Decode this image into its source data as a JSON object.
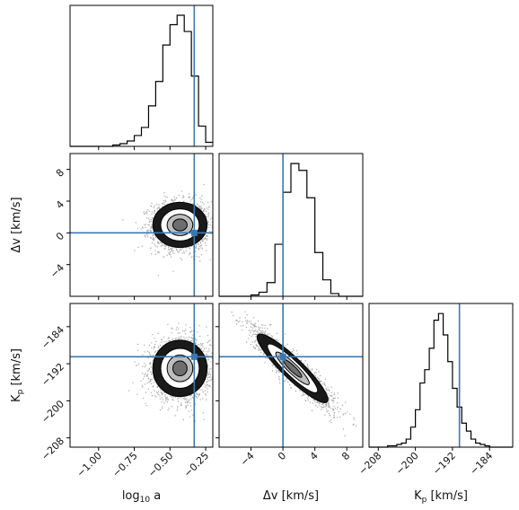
{
  "chart_data": {
    "type": "corner",
    "truth_color": "#3a78b4",
    "parameters": [
      {
        "key": "loga",
        "label_main": "log",
        "label_sub": "10",
        "label_rest": " a",
        "truth": -0.33,
        "range": [
          -1.2,
          -0.2
        ],
        "ticks": [
          -1.0,
          -0.75,
          -0.5,
          -0.25
        ],
        "tick_labels": [
          "−1.00",
          "−0.75",
          "−0.50",
          "−0.25"
        ]
      },
      {
        "key": "dv",
        "label": "Δv [km/s]",
        "truth": 0.0,
        "range": [
          -8,
          10
        ],
        "ticks": [
          -4,
          0,
          4,
          8
        ],
        "tick_labels": [
          "−4",
          "0",
          "4",
          "8"
        ]
      },
      {
        "key": "kp",
        "label_main": "K",
        "label_sub": "p",
        "label_rest": " [km/s]",
        "truth": -190.5,
        "range": [
          -210,
          -179
        ],
        "ticks": [
          -208,
          -200,
          -192,
          -184
        ],
        "tick_labels": [
          "−208",
          "−200",
          "−192",
          "−184"
        ]
      }
    ],
    "histograms": [
      {
        "param": "loga",
        "bin_edges": [
          -1.2,
          -1.15,
          -1.1,
          -1.05,
          -1.0,
          -0.95,
          -0.9,
          -0.85,
          -0.8,
          -0.75,
          -0.7,
          -0.65,
          -0.6,
          -0.55,
          -0.5,
          -0.45,
          -0.4,
          -0.35,
          -0.3,
          -0.25,
          -0.2
        ],
        "counts": [
          0,
          0,
          0,
          0,
          0,
          0,
          1,
          2,
          4,
          8,
          14,
          30,
          48,
          75,
          90,
          97,
          85,
          52,
          15,
          3
        ]
      },
      {
        "param": "dv",
        "bin_edges": [
          -8,
          -7,
          -6,
          -5,
          -4,
          -3,
          -2,
          -1,
          0,
          1,
          2,
          3,
          4,
          5,
          6,
          7,
          8,
          9,
          10
        ],
        "counts": [
          0,
          0,
          0,
          0,
          1,
          3,
          10,
          38,
          76,
          97,
          92,
          72,
          32,
          12,
          2,
          0,
          0,
          0
        ]
      },
      {
        "param": "kp",
        "bin_edges": [
          -210,
          -209,
          -208,
          -207,
          -206,
          -205,
          -204,
          -203,
          -202,
          -201,
          -200,
          -199,
          -198,
          -197,
          -196,
          -195,
          -194,
          -193,
          -192,
          -191,
          -190,
          -189,
          -188,
          -187,
          -186,
          -185,
          -184,
          -183,
          -182,
          -181,
          -180,
          -179
        ],
        "counts": [
          0,
          0,
          0,
          0,
          1,
          1,
          2,
          3,
          6,
          15,
          28,
          48,
          58,
          74,
          95,
          100,
          84,
          64,
          44,
          30,
          18,
          12,
          6,
          3,
          2,
          1,
          0,
          0,
          0,
          0,
          0
        ]
      }
    ],
    "pairs": [
      {
        "x": "loga",
        "y": "dv",
        "center": [
          -0.43,
          1.0
        ],
        "sd": [
          0.1,
          1.5
        ],
        "corr": 0.0
      },
      {
        "x": "loga",
        "y": "kp",
        "center": [
          -0.43,
          -193.0
        ],
        "sd": [
          0.1,
          3.2
        ],
        "corr": 0.0
      },
      {
        "x": "dv",
        "y": "kp",
        "center": [
          1.2,
          -193.0
        ],
        "sd": [
          2.4,
          4.0
        ],
        "corr": -0.92
      }
    ],
    "grid": false,
    "legend": "none"
  }
}
